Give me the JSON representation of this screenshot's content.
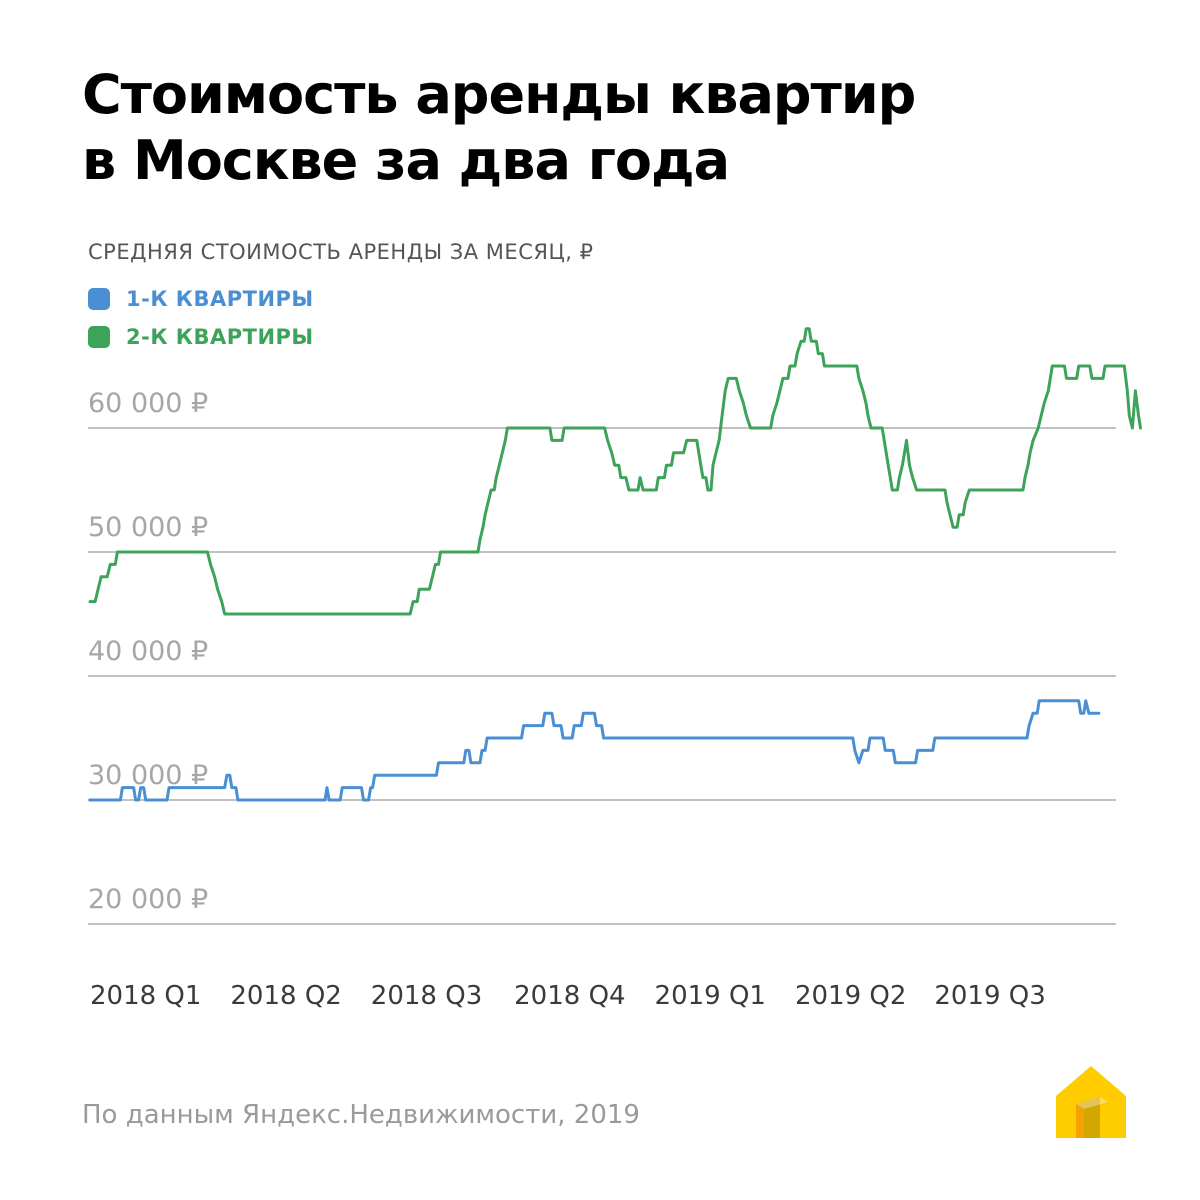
{
  "title_lines": [
    "Стоимость аренды квартир",
    "в Москве за два года"
  ],
  "subtitle": "СРЕДНЯЯ СТОИМОСТЬ АРЕНДЫ ЗА МЕСЯЦ, ₽",
  "legend": [
    {
      "label": "1-К КВАРТИРЫ",
      "color": "#4a8fd4"
    },
    {
      "label": "2-К КВАРТИРЫ",
      "color": "#3ea35a"
    }
  ],
  "source": "По данным Яндекс.Недвижимости, 2019",
  "logo_icon": "yandex-realty-house-icon",
  "chart_data": {
    "type": "line",
    "ylim": [
      17500,
      67500
    ],
    "xlim": [
      0,
      100
    ],
    "grid": "horizontal",
    "y_ticks": [
      {
        "value": 20000,
        "label": "20 000 ₽"
      },
      {
        "value": 30000,
        "label": "30 000 ₽"
      },
      {
        "value": 40000,
        "label": "40 000 ₽"
      },
      {
        "value": 50000,
        "label": "50 000 ₽"
      },
      {
        "value": 60000,
        "label": "60 000 ₽"
      }
    ],
    "x_ticks": [
      {
        "value": 0,
        "label": "2018 Q1"
      },
      {
        "value": 13.86,
        "label": "2018 Q2"
      },
      {
        "value": 27.72,
        "label": "2018 Q3"
      },
      {
        "value": 41.87,
        "label": "2018 Q4"
      },
      {
        "value": 55.73,
        "label": "2019 Q1"
      },
      {
        "value": 69.59,
        "label": "2019 Q2"
      },
      {
        "value": 83.35,
        "label": "2019 Q3"
      }
    ],
    "series": [
      {
        "name": "1-К КВАРТИРЫ",
        "color": "#4a8fd4",
        "points": [
          [
            0,
            30000
          ],
          [
            3,
            30000
          ],
          [
            3.2,
            31000
          ],
          [
            4.3,
            31000
          ],
          [
            4.5,
            30000
          ],
          [
            4.8,
            30000
          ],
          [
            5,
            31000
          ],
          [
            5.3,
            31000
          ],
          [
            5.5,
            30000
          ],
          [
            7.6,
            30000
          ],
          [
            7.8,
            31000
          ],
          [
            13.3,
            31000
          ],
          [
            13.5,
            32000
          ],
          [
            13.8,
            32000
          ],
          [
            14,
            31000
          ],
          [
            14.4,
            31000
          ],
          [
            14.6,
            30000
          ],
          [
            23.2,
            30000
          ],
          [
            23.4,
            31000
          ],
          [
            23.6,
            30000
          ],
          [
            24.7,
            30000
          ],
          [
            24.9,
            31000
          ],
          [
            26.8,
            31000
          ],
          [
            27,
            30000
          ],
          [
            27.5,
            30000
          ],
          [
            27.7,
            31000
          ],
          [
            27.9,
            31000
          ],
          [
            28.1,
            32000
          ],
          [
            34.2,
            32000
          ],
          [
            34.4,
            33000
          ],
          [
            36.9,
            33000
          ],
          [
            37.1,
            34000
          ],
          [
            37.4,
            34000
          ],
          [
            37.6,
            33000
          ],
          [
            38.5,
            33000
          ],
          [
            38.7,
            34000
          ],
          [
            39,
            34000
          ],
          [
            39.2,
            35000
          ],
          [
            42.6,
            35000
          ],
          [
            42.8,
            36000
          ],
          [
            44.7,
            36000
          ],
          [
            44.9,
            37000
          ],
          [
            45.6,
            37000
          ],
          [
            45.8,
            36000
          ],
          [
            46.5,
            36000
          ],
          [
            46.7,
            35000
          ],
          [
            47.6,
            35000
          ],
          [
            47.8,
            36000
          ],
          [
            48.5,
            36000
          ],
          [
            48.7,
            37000
          ],
          [
            49.8,
            37000
          ],
          [
            50,
            36000
          ],
          [
            50.5,
            36000
          ],
          [
            50.7,
            35000
          ],
          [
            75.3,
            35000
          ],
          [
            75.5,
            34000
          ],
          [
            75.9,
            33000
          ],
          [
            76.3,
            34000
          ],
          [
            76.8,
            34000
          ],
          [
            77,
            35000
          ],
          [
            78.3,
            35000
          ],
          [
            78.5,
            34000
          ],
          [
            79.3,
            34000
          ],
          [
            79.5,
            33000
          ],
          [
            81.5,
            33000
          ],
          [
            81.7,
            34000
          ],
          [
            83.2,
            34000
          ],
          [
            83.4,
            35000
          ],
          [
            92.5,
            35000
          ],
          [
            92.7,
            36000
          ],
          [
            93.1,
            37000
          ],
          [
            93.5,
            37000
          ],
          [
            93.7,
            38000
          ],
          [
            97.6,
            38000
          ],
          [
            97.8,
            37000
          ],
          [
            98.1,
            37000
          ],
          [
            98.3,
            38000
          ],
          [
            98.6,
            37000
          ],
          [
            99.6,
            37000
          ]
        ]
      },
      {
        "name": "2-К КВАРТИРЫ",
        "color": "#3ea35a",
        "points": [
          [
            0,
            46000
          ],
          [
            0.5,
            46000
          ],
          [
            0.8,
            47000
          ],
          [
            1.1,
            48000
          ],
          [
            1.7,
            48000
          ],
          [
            2,
            49000
          ],
          [
            2.5,
            49000
          ],
          [
            2.7,
            50000
          ],
          [
            11.6,
            50000
          ],
          [
            11.9,
            49000
          ],
          [
            12.3,
            48000
          ],
          [
            12.6,
            47000
          ],
          [
            13,
            46000
          ],
          [
            13.3,
            45000
          ],
          [
            13.6,
            45000
          ],
          [
            13.8,
            45000
          ],
          [
            31.6,
            45000
          ],
          [
            31.9,
            46000
          ],
          [
            32.3,
            46000
          ],
          [
            32.5,
            47000
          ],
          [
            33.5,
            47000
          ],
          [
            33.8,
            48000
          ],
          [
            34.1,
            49000
          ],
          [
            34.4,
            49000
          ],
          [
            34.6,
            50000
          ],
          [
            38.3,
            50000
          ],
          [
            38.5,
            51000
          ],
          [
            38.8,
            52000
          ],
          [
            39,
            53000
          ],
          [
            39.3,
            54000
          ],
          [
            39.6,
            55000
          ],
          [
            39.9,
            55000
          ],
          [
            40.1,
            56000
          ],
          [
            40.4,
            57000
          ],
          [
            40.7,
            58000
          ],
          [
            41,
            59000
          ],
          [
            41.2,
            60000
          ],
          [
            45.4,
            60000
          ],
          [
            45.6,
            59000
          ],
          [
            46.6,
            59000
          ],
          [
            46.8,
            60000
          ],
          [
            50.8,
            60000
          ],
          [
            51.1,
            59000
          ],
          [
            51.5,
            58000
          ],
          [
            51.8,
            57000
          ],
          [
            52.2,
            57000
          ],
          [
            52.4,
            56000
          ],
          [
            52.9,
            56000
          ],
          [
            53.2,
            55000
          ],
          [
            54.1,
            55000
          ],
          [
            54.3,
            56000
          ],
          [
            54.6,
            55000
          ],
          [
            55.9,
            55000
          ],
          [
            56.1,
            56000
          ],
          [
            56.7,
            56000
          ],
          [
            56.9,
            57000
          ],
          [
            57.4,
            57000
          ],
          [
            57.6,
            58000
          ],
          [
            58.6,
            58000
          ],
          [
            58.9,
            59000
          ],
          [
            59.9,
            59000
          ],
          [
            60.1,
            58000
          ],
          [
            60.3,
            57000
          ],
          [
            60.5,
            56000
          ],
          [
            60.8,
            56000
          ],
          [
            61,
            55000
          ],
          [
            61.3,
            55000
          ],
          [
            61.5,
            57000
          ],
          [
            61.8,
            58000
          ],
          [
            62.1,
            59000
          ],
          [
            62.4,
            61000
          ],
          [
            62.7,
            63000
          ],
          [
            63,
            64000
          ],
          [
            63.8,
            64000
          ],
          [
            64.1,
            63000
          ],
          [
            64.5,
            62000
          ],
          [
            64.8,
            61000
          ],
          [
            65.2,
            60000
          ],
          [
            67.2,
            60000
          ],
          [
            67.4,
            61000
          ],
          [
            67.8,
            62000
          ],
          [
            68.1,
            63000
          ],
          [
            68.4,
            64000
          ],
          [
            68.9,
            64000
          ],
          [
            69.1,
            65000
          ],
          [
            69.6,
            65000
          ],
          [
            69.8,
            66000
          ],
          [
            70.2,
            67000
          ],
          [
            70.5,
            67000
          ],
          [
            70.7,
            68000
          ],
          [
            71,
            68000
          ],
          [
            71.2,
            67000
          ],
          [
            71.7,
            67000
          ],
          [
            71.9,
            66000
          ],
          [
            72.3,
            66000
          ],
          [
            72.5,
            65000
          ],
          [
            75.7,
            65000
          ],
          [
            75.9,
            64000
          ],
          [
            76.3,
            63000
          ],
          [
            76.6,
            62000
          ],
          [
            76.8,
            61000
          ],
          [
            77.1,
            60000
          ],
          [
            78.2,
            60000
          ],
          [
            78.4,
            59000
          ],
          [
            78.6,
            58000
          ],
          [
            78.8,
            57000
          ],
          [
            79,
            56000
          ],
          [
            79.2,
            55000
          ],
          [
            79.7,
            55000
          ],
          [
            79.9,
            56000
          ],
          [
            80.2,
            57000
          ],
          [
            80.4,
            58000
          ],
          [
            80.6,
            59000
          ],
          [
            80.9,
            57000
          ],
          [
            81.2,
            56000
          ],
          [
            81.6,
            55000
          ],
          [
            84.4,
            55000
          ],
          [
            84.6,
            54000
          ],
          [
            84.9,
            53000
          ],
          [
            85.2,
            52000
          ],
          [
            85.6,
            52000
          ],
          [
            85.8,
            53000
          ],
          [
            86.2,
            53000
          ],
          [
            86.4,
            54000
          ],
          [
            86.8,
            55000
          ],
          [
            92.1,
            55000
          ],
          [
            92.3,
            56000
          ],
          [
            92.6,
            57000
          ],
          [
            92.8,
            58000
          ],
          [
            93.1,
            59000
          ],
          [
            93.6,
            60000
          ],
          [
            93.9,
            61000
          ],
          [
            94.2,
            62000
          ],
          [
            94.6,
            63000
          ],
          [
            94.8,
            64000
          ],
          [
            95,
            65000
          ],
          [
            96.2,
            65000
          ],
          [
            96.4,
            64000
          ],
          [
            97.4,
            64000
          ],
          [
            97.6,
            65000
          ],
          [
            98.7,
            65000
          ],
          [
            98.9,
            64000
          ],
          [
            100,
            64000
          ],
          [
            100.2,
            65000
          ],
          [
            102.1,
            65000
          ],
          [
            102.4,
            63000
          ],
          [
            102.6,
            61000
          ],
          [
            102.9,
            60000
          ],
          [
            103.2,
            63000
          ],
          [
            103.5,
            61000
          ],
          [
            103.7,
            60000
          ]
        ]
      }
    ]
  }
}
